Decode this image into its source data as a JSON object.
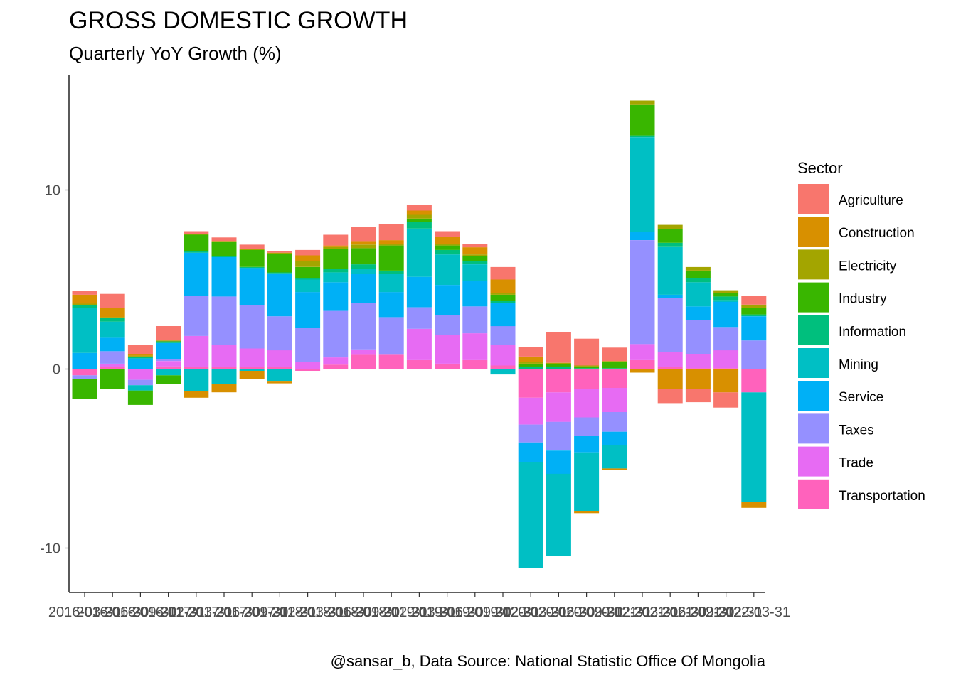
{
  "chart_data": {
    "type": "bar",
    "stacked": true,
    "title": "GROSS DOMESTIC GROWTH",
    "subtitle": "Quarterly YoY Growth (%)",
    "caption": "@sansar_b, Data Source: National Statistic Office Of Mongolia",
    "legend_title": "Sector",
    "legend_position": "right",
    "xlabel": "",
    "ylabel": "",
    "ylim": [
      -12.4,
      15.4
    ],
    "y_ticks": [
      -10,
      0,
      10
    ],
    "grid": false,
    "x_tick_labels_visible": [
      "2016-03-31",
      "2016-06-30",
      "2016-09-30",
      "2016-12-31",
      "2017-03-31",
      "2017-06-30",
      "2017-09-30",
      "2017-12-31",
      "2018-03-31",
      "2018-06-30",
      "2018-09-30",
      "2018-12-31",
      "2019-03-31",
      "2019-06-30",
      "2019-09-30",
      "2019-12-31",
      "2020-03-31",
      "2020-06-30",
      "2020-09-30",
      "2020-12-31",
      "2021-03-31",
      "2021-06-30",
      "2021-09-30",
      "2021-12-31",
      "2022-03-31"
    ],
    "categories": [
      "2016-03-31",
      "2016-06-30",
      "2016-09-30",
      "2016-12-31",
      "2017-03-31",
      "2017-06-30",
      "2017-09-30",
      "2017-12-31",
      "2018-03-31",
      "2018-06-30",
      "2018-09-30",
      "2018-12-31",
      "2019-03-31",
      "2019-06-30",
      "2019-09-30",
      "2019-12-31",
      "2020-03-31",
      "2020-06-30",
      "2020-09-30",
      "2020-12-31",
      "2021-03-31",
      "2021-06-30",
      "2021-09-30",
      "2021-12-31",
      "2022-03-31"
    ],
    "series": [
      {
        "name": "Agriculture",
        "color": "#F8766D",
        "values": [
          0.2,
          0.8,
          0.5,
          0.8,
          0.15,
          0.2,
          0.25,
          0.1,
          0.3,
          0.6,
          0.8,
          0.9,
          0.3,
          0.3,
          0.2,
          0.7,
          0.55,
          1.7,
          1.5,
          0.75,
          0.0,
          -0.8,
          -0.75,
          -0.85,
          0.5
        ]
      },
      {
        "name": "Construction",
        "color": "#D89000",
        "values": [
          0.5,
          0.5,
          0.1,
          0.0,
          -0.35,
          -0.45,
          -0.45,
          -0.1,
          0.3,
          0.05,
          0.2,
          0.2,
          0.2,
          0.4,
          0.4,
          0.75,
          0.3,
          0.0,
          -0.1,
          -0.1,
          -0.2,
          -1.1,
          -1.1,
          -1.3,
          -0.35
        ]
      },
      {
        "name": "Electricity",
        "color": "#A3A500",
        "values": [
          0.1,
          0.05,
          0.05,
          0.05,
          0.05,
          0.05,
          0.05,
          0.05,
          0.35,
          0.15,
          0.2,
          0.1,
          0.25,
          0.1,
          0.1,
          0.1,
          0.1,
          0.05,
          0.05,
          0.05,
          0.25,
          0.25,
          0.2,
          0.15,
          0.2
        ]
      },
      {
        "name": "Industry",
        "color": "#39B600",
        "values": [
          -1.1,
          -1.1,
          -0.8,
          -0.5,
          0.9,
          0.8,
          0.95,
          1.05,
          0.6,
          1.1,
          0.9,
          1.4,
          0.2,
          0.25,
          0.25,
          0.35,
          0.2,
          0.2,
          0.1,
          0.35,
          1.7,
          0.75,
          0.4,
          0.2,
          0.35
        ]
      },
      {
        "name": "Information",
        "color": "#00BF7D",
        "values": [
          0.15,
          0.2,
          0.1,
          0.1,
          0.1,
          0.05,
          0.05,
          0.05,
          0.1,
          0.2,
          0.25,
          0.2,
          0.35,
          0.25,
          0.2,
          0.1,
          0.1,
          0.1,
          0.05,
          0.05,
          0.1,
          0.2,
          0.25,
          0.2,
          0.1
        ]
      },
      {
        "name": "Mining",
        "color": "#00BFC4",
        "values": [
          2.5,
          0.9,
          -0.3,
          -0.35,
          -1.25,
          -0.85,
          -0.1,
          -0.7,
          0.7,
          0.55,
          0.3,
          1.0,
          2.7,
          1.7,
          0.95,
          -0.3,
          -5.9,
          -4.6,
          -3.3,
          -1.3,
          5.3,
          2.7,
          1.35,
          0.1,
          -6.1
        ]
      },
      {
        "name": "Service",
        "color": "#00B0F6",
        "values": [
          0.9,
          0.75,
          0.6,
          0.9,
          2.4,
          2.2,
          2.1,
          2.4,
          2.0,
          1.6,
          1.6,
          1.4,
          1.7,
          1.7,
          1.4,
          1.3,
          -1.1,
          -1.3,
          -0.9,
          -0.75,
          0.45,
          0.2,
          0.75,
          1.4,
          1.35
        ]
      },
      {
        "name": "Taxes",
        "color": "#9590FF",
        "values": [
          -0.2,
          0.7,
          -0.3,
          0.1,
          2.25,
          2.7,
          2.4,
          1.9,
          1.9,
          2.6,
          2.6,
          2.1,
          1.2,
          1.1,
          1.5,
          1.05,
          -1.0,
          -1.6,
          -1.05,
          -1.1,
          5.8,
          3.0,
          1.9,
          1.3,
          1.6
        ]
      },
      {
        "name": "Trade",
        "color": "#E76BF3",
        "values": [
          0.0,
          0.2,
          -0.6,
          0.3,
          1.75,
          1.25,
          1.05,
          0.95,
          0.4,
          0.4,
          0.3,
          0.0,
          1.75,
          1.6,
          1.5,
          1.15,
          -1.5,
          -1.65,
          -1.6,
          -1.35,
          0.9,
          0.85,
          0.8,
          1.0,
          0.0
        ]
      },
      {
        "name": "Transportation",
        "color": "#FF62BC",
        "values": [
          -0.35,
          0.1,
          0.0,
          0.15,
          0.1,
          0.1,
          0.1,
          0.1,
          -0.1,
          0.25,
          0.8,
          0.8,
          0.5,
          0.3,
          0.5,
          0.2,
          -1.6,
          -1.3,
          -1.1,
          -1.05,
          0.5,
          0.1,
          0.05,
          0.05,
          -1.3
        ]
      }
    ]
  }
}
